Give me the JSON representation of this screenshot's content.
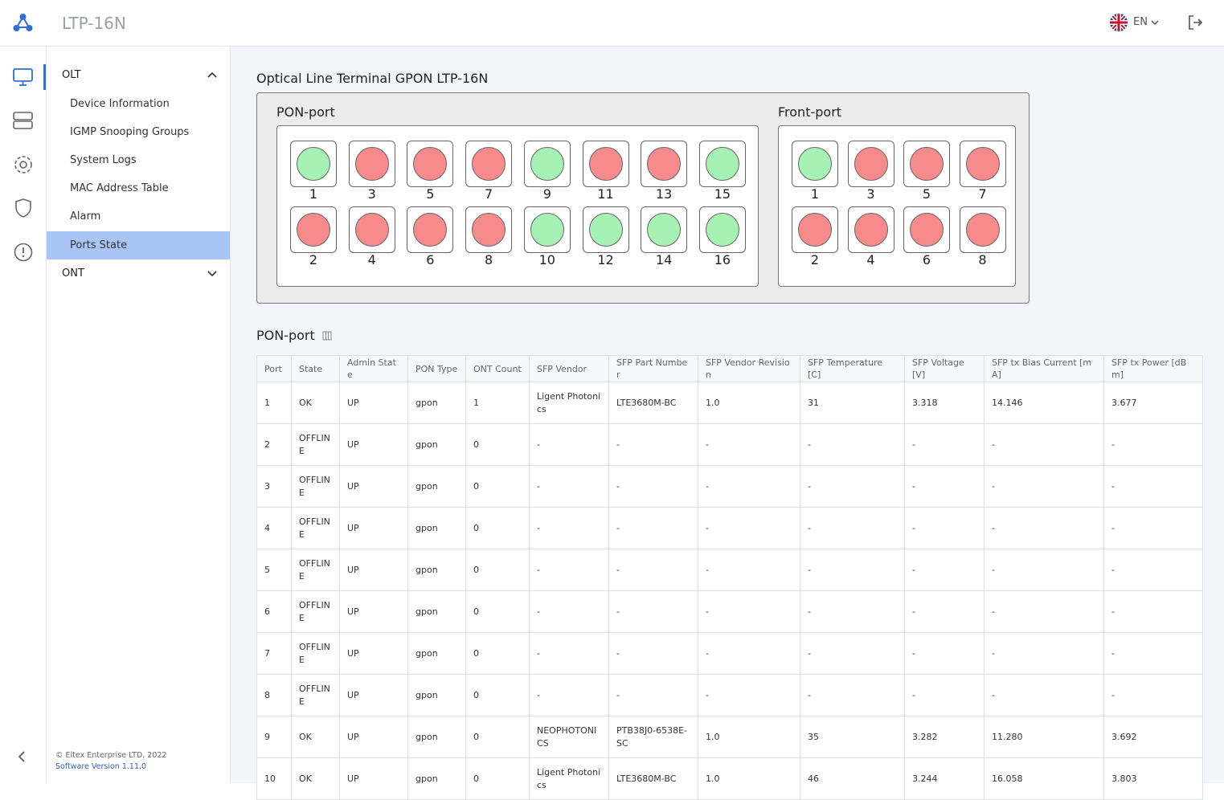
{
  "header": {
    "title": "LTP-16N",
    "lang": "EN"
  },
  "sidebar": {
    "menu": [
      {
        "label": "OLT",
        "items": [
          "Device Information",
          "IGMP Snooping Groups",
          "System Logs",
          "MAC Address Table",
          "Alarm",
          "Ports State"
        ]
      },
      {
        "label": "ONT"
      }
    ],
    "footer": {
      "copyright": "© Eltex Enterprise LTD, 2022",
      "version": "Software Version 1.11.0"
    }
  },
  "panel": {
    "title": "Optical Line Terminal GPON LTP-16N",
    "colors": {
      "up": "#a6f2b4",
      "down": "#f78a8a"
    },
    "groups": [
      {
        "title": "PON-port",
        "ports": [
          {
            "label": 1,
            "state": "up"
          },
          {
            "label": 2,
            "state": "down"
          },
          {
            "label": 3,
            "state": "down"
          },
          {
            "label": 4,
            "state": "down"
          },
          {
            "label": 5,
            "state": "down"
          },
          {
            "label": 6,
            "state": "down"
          },
          {
            "label": 7,
            "state": "down"
          },
          {
            "label": 8,
            "state": "down"
          },
          {
            "label": 9,
            "state": "up"
          },
          {
            "label": 10,
            "state": "up"
          },
          {
            "label": 11,
            "state": "down"
          },
          {
            "label": 12,
            "state": "up"
          },
          {
            "label": 13,
            "state": "down"
          },
          {
            "label": 14,
            "state": "up"
          },
          {
            "label": 15,
            "state": "up"
          },
          {
            "label": 16,
            "state": "up"
          }
        ]
      },
      {
        "title": "Front-port",
        "ports": [
          {
            "label": 1,
            "state": "up"
          },
          {
            "label": 2,
            "state": "down"
          },
          {
            "label": 3,
            "state": "down"
          },
          {
            "label": 4,
            "state": "down"
          },
          {
            "label": 5,
            "state": "down"
          },
          {
            "label": 6,
            "state": "down"
          },
          {
            "label": 7,
            "state": "down"
          },
          {
            "label": 8,
            "state": "down"
          }
        ]
      }
    ]
  },
  "table": {
    "title": "PON-port",
    "columns": [
      "Port",
      "State",
      "Admin State",
      "PON Type",
      "ONT Count",
      "SFP Vendor",
      "SFP Part Number",
      "SFP Vendor Revision",
      "SFP Temperature [C]",
      "SFP Voltage [V]",
      "SFP tx Bias Current [mA]",
      "SFP tx Power [dBm]"
    ],
    "rows": [
      [
        "1",
        "OK",
        "UP",
        "gpon",
        "1",
        "Ligent Photonics",
        "LTE3680M-BC",
        "1.0",
        "31",
        "3.318",
        "14.146",
        "3.677"
      ],
      [
        "2",
        "OFFLINE",
        "UP",
        "gpon",
        "0",
        "-",
        "-",
        "-",
        "-",
        "-",
        "-",
        "-"
      ],
      [
        "3",
        "OFFLINE",
        "UP",
        "gpon",
        "0",
        "-",
        "-",
        "-",
        "-",
        "-",
        "-",
        "-"
      ],
      [
        "4",
        "OFFLINE",
        "UP",
        "gpon",
        "0",
        "-",
        "-",
        "-",
        "-",
        "-",
        "-",
        "-"
      ],
      [
        "5",
        "OFFLINE",
        "UP",
        "gpon",
        "0",
        "-",
        "-",
        "-",
        "-",
        "-",
        "-",
        "-"
      ],
      [
        "6",
        "OFFLINE",
        "UP",
        "gpon",
        "0",
        "-",
        "-",
        "-",
        "-",
        "-",
        "-",
        "-"
      ],
      [
        "7",
        "OFFLINE",
        "UP",
        "gpon",
        "0",
        "-",
        "-",
        "-",
        "-",
        "-",
        "-",
        "-"
      ],
      [
        "8",
        "OFFLINE",
        "UP",
        "gpon",
        "0",
        "-",
        "-",
        "-",
        "-",
        "-",
        "-",
        "-"
      ],
      [
        "9",
        "OK",
        "UP",
        "gpon",
        "0",
        "NEOPHOTONICS",
        "PTB38J0-6538E-SC",
        "1.0",
        "35",
        "3.282",
        "11.280",
        "3.692"
      ],
      [
        "10",
        "OK",
        "UP",
        "gpon",
        "0",
        "Ligent Photonics",
        "LTE3680M-BC",
        "1.0",
        "46",
        "3.244",
        "16.058",
        "3.803"
      ]
    ]
  }
}
